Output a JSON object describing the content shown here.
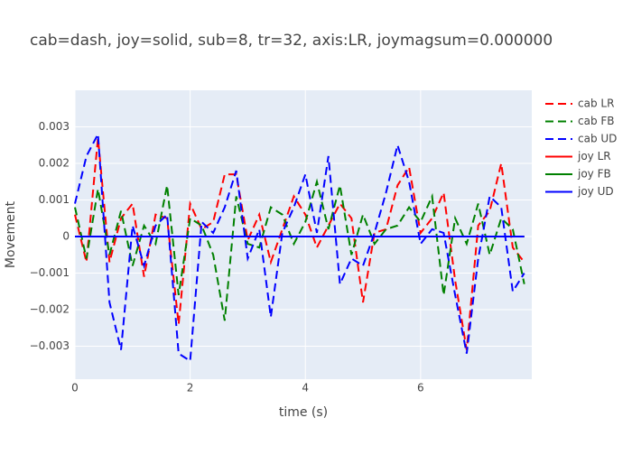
{
  "chart_data": {
    "type": "line",
    "title": "cab=dash, joy=solid, sub=8, tr=32, axis:LR, joymagsum=0.000000",
    "x_label": "time (s)",
    "y_label": "Movement",
    "x": [
      0,
      0.2,
      0.4,
      0.6,
      0.8,
      1.0,
      1.2,
      1.4,
      1.6,
      1.8,
      2.0,
      2.2,
      2.4,
      2.6,
      2.8,
      3.0,
      3.2,
      3.4,
      3.6,
      3.8,
      4.0,
      4.2,
      4.4,
      4.6,
      4.8,
      5.0,
      5.2,
      5.4,
      5.6,
      5.8,
      6.0,
      6.2,
      6.4,
      6.6,
      6.8,
      7.0,
      7.2,
      7.4,
      7.6,
      7.8
    ],
    "series": [
      {
        "name": "cab LR",
        "color": "#ff0000",
        "dash": true,
        "values": [
          0.0006,
          -0.0007,
          0.0027,
          -0.0007,
          0.0005,
          0.0009,
          -0.0011,
          0.0006,
          0.0005,
          -0.0024,
          0.0009,
          0.0002,
          0.0004,
          0.0017,
          0.0017,
          -0.0001,
          0.0006,
          -0.0007,
          0.0002,
          0.0011,
          0.0006,
          -0.0003,
          0.0003,
          0.0009,
          0.0005,
          -0.0018,
          0.0001,
          0.0002,
          0.0014,
          0.0019,
          0.0001,
          0.0005,
          0.0012,
          -0.0012,
          -0.0031,
          0.0003,
          0.0007,
          0.002,
          -0.0003,
          -0.0007
        ]
      },
      {
        "name": "cab FB",
        "color": "#008000",
        "dash": true,
        "values": [
          0.0008,
          -0.0006,
          0.0013,
          -0.0005,
          0.0007,
          -0.0008,
          0.0003,
          -0.0002,
          0.0014,
          -0.0016,
          0.0005,
          0.0003,
          -0.0005,
          -0.0023,
          0.0011,
          -0.0002,
          -0.0003,
          0.0008,
          0.0006,
          -0.0002,
          0.0004,
          0.0015,
          0.0002,
          0.0014,
          -0.0005,
          0.0006,
          -0.0002,
          0.0002,
          0.0003,
          0.0008,
          0.0004,
          0.0011,
          -0.0016,
          0.0005,
          -0.0002,
          0.0009,
          -0.0005,
          0.0005,
          0.0002,
          -0.0013
        ]
      },
      {
        "name": "cab UD",
        "color": "#0000ff",
        "dash": true,
        "values": [
          0.0009,
          0.0022,
          0.0028,
          -0.0018,
          -0.0031,
          0.0003,
          -0.0008,
          0.0003,
          0.0006,
          -0.0032,
          -0.0034,
          0.0004,
          0.0001,
          0.0008,
          0.0018,
          -0.0006,
          0.0002,
          -0.0022,
          0.0001,
          0.0008,
          0.0017,
          0.0001,
          0.0022,
          -0.0013,
          -0.0006,
          -0.0008,
          0.0001,
          0.0012,
          0.0025,
          0.0015,
          -0.0002,
          0.0002,
          0.0001,
          -0.0016,
          -0.0032,
          -0.0006,
          0.0011,
          0.0008,
          -0.0015,
          -0.001
        ]
      },
      {
        "name": "joy LR",
        "color": "#ff0000",
        "dash": false,
        "values": [
          0,
          0,
          0,
          0,
          0,
          0,
          0,
          0,
          0,
          0,
          0,
          0,
          0,
          0,
          0,
          0,
          0,
          0,
          0,
          0,
          0,
          0,
          0,
          0,
          0,
          0,
          0,
          0,
          0,
          0,
          0,
          0,
          0,
          0,
          0,
          0,
          0,
          0,
          0,
          0
        ]
      },
      {
        "name": "joy FB",
        "color": "#008000",
        "dash": false,
        "values": [
          0,
          0,
          0,
          0,
          0,
          0,
          0,
          0,
          0,
          0,
          0,
          0,
          0,
          0,
          0,
          0,
          0,
          0,
          0,
          0,
          0,
          0,
          0,
          0,
          0,
          0,
          0,
          0,
          0,
          0,
          0,
          0,
          0,
          0,
          0,
          0,
          0,
          0,
          0,
          0
        ]
      },
      {
        "name": "joy UD",
        "color": "#0000ff",
        "dash": false,
        "values": [
          0,
          0,
          0,
          0,
          0,
          0,
          0,
          0,
          0,
          0,
          0,
          0,
          0,
          0,
          0,
          0,
          0,
          0,
          0,
          0,
          0,
          0,
          0,
          0,
          0,
          0,
          0,
          0,
          0,
          0,
          0,
          0,
          0,
          0,
          0,
          0,
          0,
          0,
          0,
          0
        ]
      }
    ],
    "xlim": [
      0,
      7.93
    ],
    "xticks": [
      0,
      2,
      4,
      6
    ],
    "ylim": [
      -0.0039,
      0.004
    ],
    "yticks": [
      {
        "value": -0.003,
        "label": "−0.003"
      },
      {
        "value": -0.002,
        "label": "−0.002"
      },
      {
        "value": -0.001,
        "label": "−0.001"
      },
      0,
      0.001,
      0.002,
      0.003
    ],
    "grid": true,
    "legend": "right"
  }
}
